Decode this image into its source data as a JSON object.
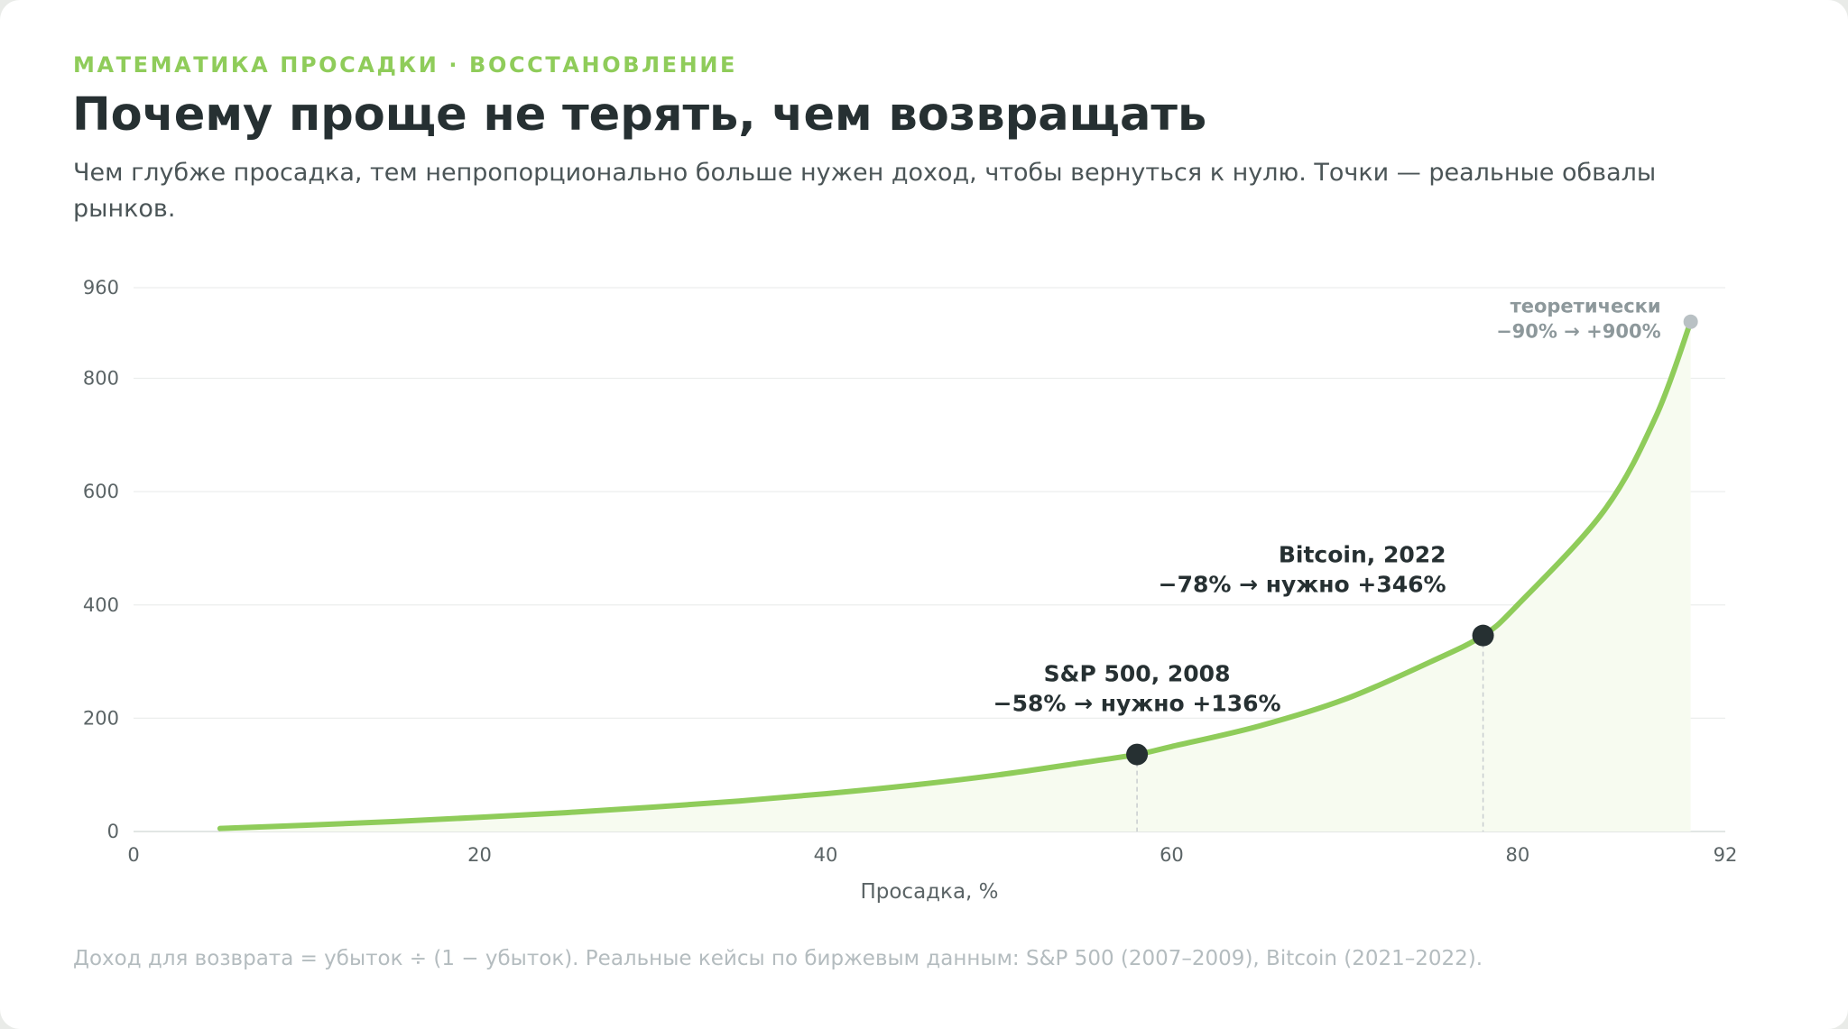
{
  "eyebrow": "МАТЕМАТИКА ПРОСАДКИ · ВОССТАНОВЛЕНИЕ",
  "title": "Почему проще не терять, чем возвращать",
  "subtitle": "Чем глубже просадка, тем непропорционально больше нужен доход, чтобы вернуться к нулю. Точки — реальные обвалы рынков.",
  "footnote": "Доход для возврата = убыток ÷ (1 − убыток). Реальные кейсы по биржевым данным: S&P 500 (2007–2009), Bitcoin (2021–2022).",
  "colors": {
    "accent": "#8fcc5a",
    "fill": "#f7fbf0",
    "point": "#263032",
    "muted_point": "#b9c1c4",
    "grid": "#eceeed",
    "guide": "#c8cdcf"
  },
  "chart_data": {
    "type": "area",
    "xlabel": "Просадка, %",
    "ylabel": "",
    "xlim": [
      0,
      92
    ],
    "ylim": [
      0,
      960
    ],
    "x_ticks": [
      "0",
      "20",
      "40",
      "60",
      "80",
      "92"
    ],
    "y_ticks": [
      "0",
      "200",
      "400",
      "600",
      "800",
      "960"
    ],
    "grid": true,
    "series": [
      {
        "x": [
          5,
          10,
          15,
          20,
          25,
          30,
          35,
          40,
          45,
          50,
          55,
          58,
          60,
          65,
          70,
          75,
          78,
          80,
          85,
          88,
          90
        ],
        "values": [
          5.3,
          11.1,
          17.6,
          25,
          33.3,
          42.9,
          53.8,
          66.7,
          81.8,
          100,
          122.2,
          136,
          150,
          185.7,
          233.3,
          300,
          346,
          400,
          566.7,
          733.3,
          900
        ]
      }
    ],
    "points": [
      {
        "x": 58,
        "y": 136,
        "label_line1": "S&P 500, 2008",
        "label_line2": "−58% → нужно +136%",
        "highlight": true
      },
      {
        "x": 78,
        "y": 346,
        "label_line1": "Bitcoin, 2022",
        "label_line2": "−78% → нужно +346%",
        "highlight": true
      },
      {
        "x": 90,
        "y": 900,
        "label_line1": "теоретически",
        "label_line2": "−90% → +900%",
        "highlight": false
      }
    ]
  }
}
